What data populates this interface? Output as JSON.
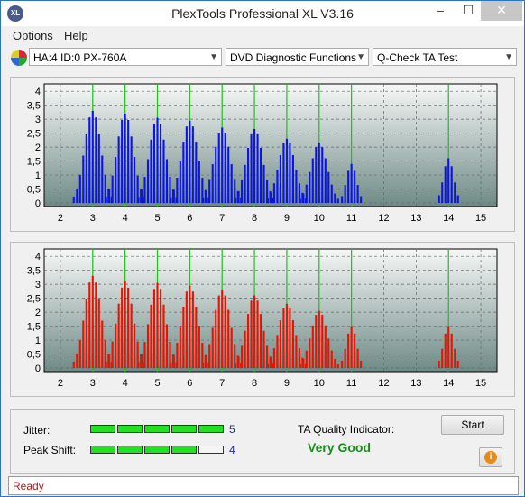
{
  "window": {
    "title": "PlexTools Professional XL V3.16",
    "icon_text": "XL",
    "min_glyph": "–",
    "max_glyph": "☐",
    "close_glyph": "✕"
  },
  "menu": {
    "items": [
      "Options",
      "Help"
    ]
  },
  "toolbar": {
    "drive": "HA:4 ID:0  PX-760A",
    "function": "DVD Diagnostic Functions",
    "test": "Q-Check TA Test",
    "arrow": "▼"
  },
  "charts": {
    "y_ticks": [
      "0",
      "0,5",
      "1",
      "1,5",
      "2",
      "2,5",
      "3",
      "3,5",
      "4"
    ],
    "x_ticks": [
      "2",
      "3",
      "4",
      "5",
      "6",
      "7",
      "8",
      "9",
      "10",
      "11",
      "12",
      "13",
      "14",
      "15"
    ],
    "top_color": "#0a14e6",
    "bottom_color": "#e61400",
    "green_line_color": "#20c020"
  },
  "chart_data": [
    {
      "type": "bar",
      "name_hint": "top",
      "x_range": [
        1.5,
        15.5
      ],
      "ylim": [
        0,
        4.2
      ],
      "grid": true,
      "peaks": [
        {
          "x": 3,
          "h": 3.3
        },
        {
          "x": 4,
          "h": 3.2
        },
        {
          "x": 5,
          "h": 3.05
        },
        {
          "x": 6,
          "h": 2.95
        },
        {
          "x": 7,
          "h": 2.7
        },
        {
          "x": 8,
          "h": 2.65
        },
        {
          "x": 9,
          "h": 2.3
        },
        {
          "x": 10,
          "h": 2.15
        },
        {
          "x": 11,
          "h": 1.4
        },
        {
          "x": 14,
          "h": 1.6
        }
      ],
      "markers": [
        3,
        4,
        5,
        6,
        7,
        8,
        9,
        10,
        11,
        14
      ]
    },
    {
      "type": "bar",
      "name_hint": "bottom",
      "x_range": [
        1.5,
        15.5
      ],
      "ylim": [
        0,
        4.2
      ],
      "grid": true,
      "peaks": [
        {
          "x": 3,
          "h": 3.3
        },
        {
          "x": 4,
          "h": 3.1
        },
        {
          "x": 5,
          "h": 3.05
        },
        {
          "x": 6,
          "h": 2.95
        },
        {
          "x": 7,
          "h": 2.8
        },
        {
          "x": 8,
          "h": 2.6
        },
        {
          "x": 9,
          "h": 2.3
        },
        {
          "x": 10,
          "h": 2.05
        },
        {
          "x": 11,
          "h": 1.5
        },
        {
          "x": 14,
          "h": 1.5
        }
      ],
      "markers": [
        3,
        4,
        5,
        6,
        7,
        8,
        9,
        10,
        11,
        14
      ]
    }
  ],
  "metrics": {
    "jitter_label": "Jitter:",
    "jitter_value": "5",
    "jitter_level": 5,
    "peak_label": "Peak Shift:",
    "peak_value": "4",
    "peak_level": 4,
    "segments": 5,
    "on_color": "#22e022",
    "off_color": "#f4f4f4"
  },
  "quality": {
    "label": "TA Quality Indicator:",
    "value": "Very Good"
  },
  "buttons": {
    "start": "Start",
    "info": "i"
  },
  "status": {
    "text": "Ready"
  }
}
